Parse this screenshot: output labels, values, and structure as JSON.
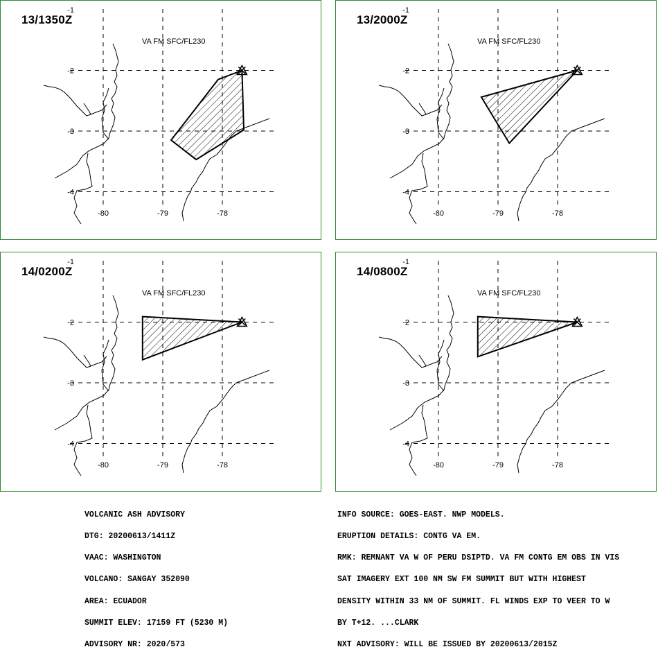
{
  "panels": [
    {
      "time": "13/1350Z",
      "label": "VA FM SFC/FL230",
      "ash_polygon": [
        [
          -77.67,
          -2.0
        ],
        [
          -78.07,
          -2.15
        ],
        [
          -78.86,
          -3.15
        ],
        [
          -78.44,
          -3.47
        ],
        [
          -77.64,
          -2.98
        ]
      ]
    },
    {
      "time": "13/2000Z",
      "label": "VA FM SFC/FL230",
      "ash_polygon": [
        [
          -77.67,
          -2.0
        ],
        [
          -79.28,
          -2.44
        ],
        [
          -78.81,
          -3.2
        ]
      ]
    },
    {
      "time": "14/0200Z",
      "label": "VA FM SFC/FL230",
      "ash_polygon": [
        [
          -77.67,
          -2.0
        ],
        [
          -79.34,
          -1.91
        ],
        [
          -79.34,
          -2.62
        ]
      ]
    },
    {
      "time": "14/0800Z",
      "label": "VA FM SFC/FL230",
      "ash_polygon": [
        [
          -77.67,
          -2.0
        ],
        [
          -79.34,
          -1.91
        ],
        [
          -79.34,
          -2.57
        ]
      ]
    }
  ],
  "map": {
    "lon_ticks": [
      "-80",
      "-79",
      "-78"
    ],
    "lat_ticks": [
      "-1",
      "-2",
      "-3",
      "-4"
    ],
    "volcano_lon": -77.67,
    "volcano_lat": -2.0
  },
  "advisory_left": [
    "VOLCANIC ASH ADVISORY",
    "DTG: 20200613/1411Z",
    "VAAC: WASHINGTON",
    "VOLCANO: SANGAY 352090",
    "AREA: ECUADOR",
    "SUMMIT ELEV: 17159 FT (5230 M)",
    "ADVISORY NR: 2020/573"
  ],
  "advisory_right": [
    "INFO SOURCE: GOES-EAST. NWP MODELS.",
    "ERUPTION DETAILS: CONTG VA EM.",
    "RMK: REMNANT VA W OF PERU DSIPTD. VA FM CONTG EM OBS IN VIS",
    "SAT IMAGERY EXT 100 NM SW FM SUMMIT BUT WITH HIGHEST",
    "DENSITY WITHIN 33 NM OF SUMMIT. FL WINDS EXP TO VEER TO W",
    "BY T+12. ...CLARK",
    "NXT ADVISORY: WILL BE ISSUED BY 20200613/2015Z"
  ],
  "colors": {
    "panel_border": "#2e8b2e",
    "lines": "#000000",
    "background": "#ffffff"
  }
}
